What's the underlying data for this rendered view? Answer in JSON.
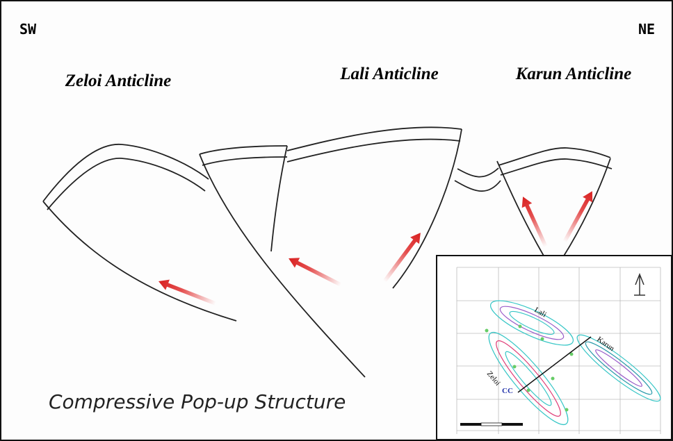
{
  "corners": {
    "left": "SW",
    "right": "NE"
  },
  "anticlines": [
    {
      "label": "Zeloi Anticline"
    },
    {
      "label": "Lali Anticline"
    },
    {
      "label": "Karun Anticline"
    }
  ],
  "caption": "Compressive Pop-up Structure",
  "inset_map": {
    "labels": [
      "Lali",
      "Karun",
      "Zeloi",
      "CC"
    ]
  }
}
